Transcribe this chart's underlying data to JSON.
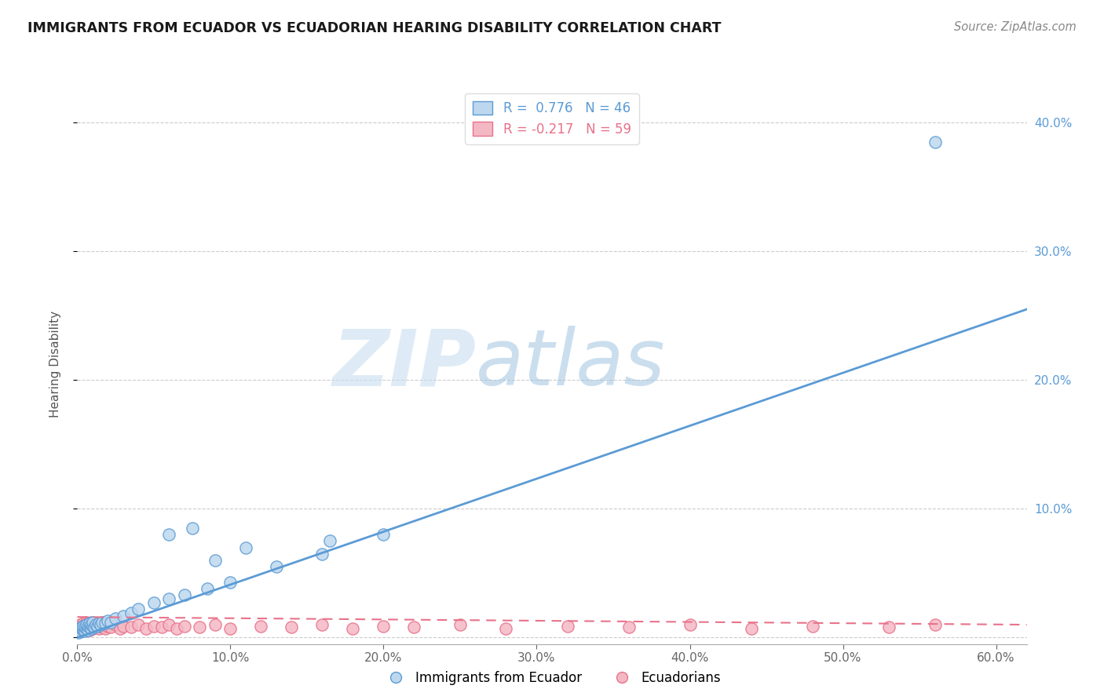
{
  "title": "IMMIGRANTS FROM ECUADOR VS ECUADORIAN HEARING DISABILITY CORRELATION CHART",
  "source": "Source: ZipAtlas.com",
  "ylabel": "Hearing Disability",
  "xlabel": "",
  "xlim": [
    0.0,
    0.62
  ],
  "ylim": [
    -0.005,
    0.43
  ],
  "yticks": [
    0.0,
    0.1,
    0.2,
    0.3,
    0.4
  ],
  "xticks": [
    0.0,
    0.1,
    0.2,
    0.3,
    0.4,
    0.5,
    0.6
  ],
  "xtick_labels": [
    "0.0%",
    "10.0%",
    "20.0%",
    "30.0%",
    "40.0%",
    "50.0%",
    "60.0%"
  ],
  "right_yticks": [
    0.1,
    0.2,
    0.3,
    0.4
  ],
  "right_ytick_labels": [
    "10.0%",
    "20.0%",
    "30.0%",
    "40.0%"
  ],
  "blue_color": "#5b9bd5",
  "blue_fill": "#bdd7ee",
  "pink_color": "#e8728a",
  "pink_fill": "#f4b8c5",
  "blue_R": 0.776,
  "blue_N": 46,
  "pink_R": -0.217,
  "pink_N": 59,
  "legend_label_blue": "Immigrants from Ecuador",
  "legend_label_pink": "Ecuadorians",
  "blue_line_x0": 0.0,
  "blue_line_y0": 0.0,
  "blue_line_x1": 0.62,
  "blue_line_y1": 0.255,
  "pink_line_x0": 0.0,
  "pink_line_y0": 0.016,
  "pink_line_x1": 0.62,
  "pink_line_y1": 0.01,
  "blue_scatter_x": [
    0.001,
    0.002,
    0.002,
    0.003,
    0.003,
    0.004,
    0.004,
    0.005,
    0.005,
    0.006,
    0.006,
    0.007,
    0.007,
    0.008,
    0.008,
    0.009,
    0.009,
    0.01,
    0.01,
    0.011,
    0.012,
    0.013,
    0.014,
    0.015,
    0.016,
    0.018,
    0.02,
    0.022,
    0.025,
    0.03,
    0.035,
    0.04,
    0.05,
    0.06,
    0.07,
    0.085,
    0.1,
    0.13,
    0.16,
    0.2,
    0.06,
    0.075,
    0.09,
    0.11,
    0.56,
    0.165
  ],
  "blue_scatter_y": [
    0.004,
    0.006,
    0.005,
    0.007,
    0.008,
    0.006,
    0.009,
    0.005,
    0.008,
    0.007,
    0.01,
    0.006,
    0.009,
    0.008,
    0.011,
    0.007,
    0.01,
    0.009,
    0.012,
    0.008,
    0.01,
    0.009,
    0.011,
    0.01,
    0.012,
    0.011,
    0.013,
    0.012,
    0.015,
    0.017,
    0.019,
    0.022,
    0.027,
    0.03,
    0.033,
    0.038,
    0.043,
    0.055,
    0.065,
    0.08,
    0.08,
    0.085,
    0.06,
    0.07,
    0.385,
    0.075
  ],
  "pink_scatter_x": [
    0.001,
    0.001,
    0.002,
    0.002,
    0.003,
    0.003,
    0.004,
    0.004,
    0.005,
    0.005,
    0.006,
    0.006,
    0.007,
    0.007,
    0.008,
    0.008,
    0.009,
    0.009,
    0.01,
    0.01,
    0.011,
    0.012,
    0.013,
    0.014,
    0.015,
    0.016,
    0.017,
    0.018,
    0.02,
    0.022,
    0.025,
    0.028,
    0.03,
    0.035,
    0.04,
    0.045,
    0.05,
    0.055,
    0.06,
    0.065,
    0.07,
    0.08,
    0.09,
    0.1,
    0.12,
    0.14,
    0.16,
    0.18,
    0.2,
    0.22,
    0.25,
    0.28,
    0.32,
    0.36,
    0.4,
    0.44,
    0.48,
    0.53,
    0.56
  ],
  "pink_scatter_y": [
    0.005,
    0.008,
    0.006,
    0.01,
    0.005,
    0.009,
    0.007,
    0.011,
    0.006,
    0.01,
    0.008,
    0.012,
    0.007,
    0.011,
    0.006,
    0.01,
    0.008,
    0.012,
    0.007,
    0.011,
    0.009,
    0.008,
    0.01,
    0.007,
    0.009,
    0.008,
    0.01,
    0.007,
    0.009,
    0.008,
    0.01,
    0.007,
    0.009,
    0.008,
    0.01,
    0.007,
    0.009,
    0.008,
    0.01,
    0.007,
    0.009,
    0.008,
    0.01,
    0.007,
    0.009,
    0.008,
    0.01,
    0.007,
    0.009,
    0.008,
    0.01,
    0.007,
    0.009,
    0.008,
    0.01,
    0.007,
    0.009,
    0.008,
    0.01
  ]
}
